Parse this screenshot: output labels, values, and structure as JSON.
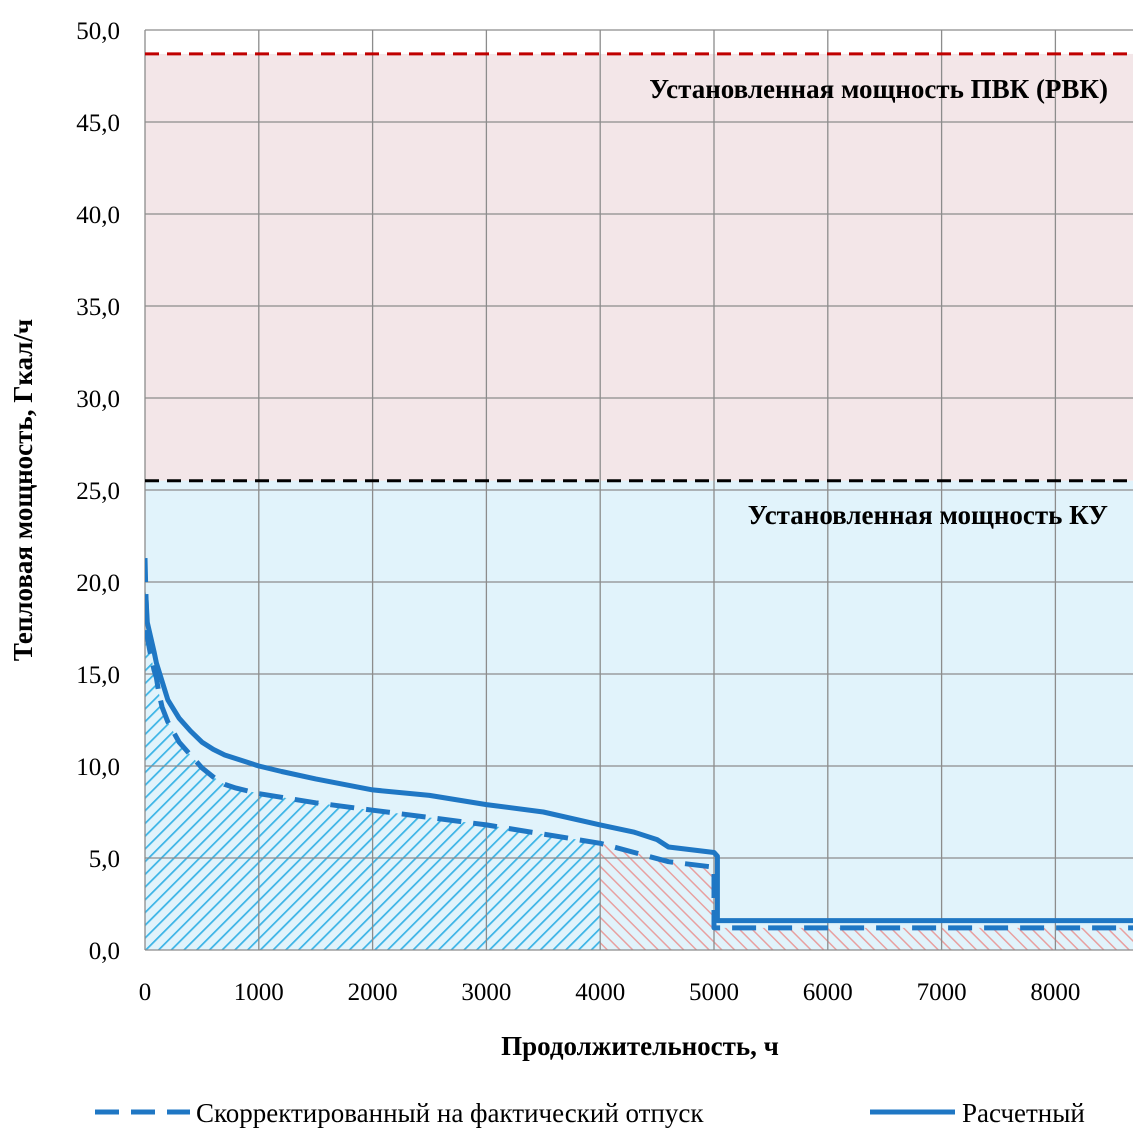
{
  "chart_data": {
    "type": "line",
    "xlabel": "Продолжительность, ч",
    "ylabel": "Тепловая мощность, Гкал/ч",
    "xlim": [
      0,
      8760
    ],
    "ylim": [
      0,
      50
    ],
    "x_ticks": [
      0,
      1000,
      2000,
      3000,
      4000,
      5000,
      6000,
      7000,
      8000
    ],
    "x_tick_labels": [
      "0",
      "1000",
      "2000",
      "3000",
      "4000",
      "5000",
      "6000",
      "7000",
      "8000"
    ],
    "y_ticks": [
      0,
      5,
      10,
      15,
      20,
      25,
      30,
      35,
      40,
      45,
      50
    ],
    "y_tick_labels": [
      "0,0",
      "5,0",
      "10,0",
      "15,0",
      "20,0",
      "25,0",
      "30,0",
      "35,0",
      "40,0",
      "45,0",
      "50,0"
    ],
    "grid": true,
    "legend_position": "bottom",
    "reference_lines": [
      {
        "label": "Установленная мощность ПВК (РВК)",
        "y": 48.7,
        "color": "#c00000"
      },
      {
        "label": "Установленная мощность КУ",
        "y": 25.5,
        "color": "#000000"
      }
    ],
    "bands": [
      {
        "from": 25.5,
        "to": 48.7,
        "color": "#f3e6e8"
      },
      {
        "from": 0,
        "to": 25.5,
        "color": "#e1f3fb"
      }
    ],
    "hatched_regions": [
      {
        "x_from": 0,
        "x_to": 4000,
        "color": "#3cb4e6"
      },
      {
        "x_from": 4000,
        "x_to": 8760,
        "color": "#e8a0a0"
      }
    ],
    "series": [
      {
        "name": "Скорректированный на фактический отпуск",
        "style": "dashed",
        "color": "#1f77c4",
        "x": [
          0,
          5,
          10,
          20,
          50,
          80,
          100,
          120,
          150,
          200,
          300,
          400,
          500,
          600,
          700,
          800,
          1000,
          1200,
          1500,
          2000,
          2500,
          3000,
          3500,
          4000,
          4300,
          4600,
          5000,
          5000,
          5500,
          6000,
          7000,
          8000,
          8760
        ],
        "y": [
          21.3,
          20.0,
          19.0,
          17.0,
          16.0,
          15.2,
          14.8,
          14.0,
          13.2,
          12.4,
          11.3,
          10.6,
          9.9,
          9.4,
          9.0,
          8.8,
          8.5,
          8.3,
          8.0,
          7.6,
          7.2,
          6.8,
          6.3,
          5.8,
          5.3,
          4.8,
          4.5,
          1.2,
          1.2,
          1.2,
          1.2,
          1.2,
          1.2
        ]
      },
      {
        "name": "Расчетный",
        "style": "solid",
        "color": "#1f77c4",
        "x": [
          0,
          10,
          20,
          50,
          80,
          100,
          150,
          200,
          300,
          400,
          500,
          600,
          700,
          800,
          1000,
          1200,
          1500,
          2000,
          2500,
          3000,
          3500,
          4000,
          4300,
          4500,
          4600,
          5000,
          5030,
          5030,
          5500,
          6000,
          7000,
          8000,
          8760
        ],
        "y": [
          19.2,
          19.0,
          17.8,
          17.0,
          16.2,
          15.6,
          14.6,
          13.6,
          12.6,
          11.9,
          11.3,
          10.9,
          10.6,
          10.4,
          10.0,
          9.7,
          9.3,
          8.7,
          8.4,
          7.9,
          7.5,
          6.8,
          6.4,
          6.0,
          5.6,
          5.3,
          5.1,
          1.6,
          1.6,
          1.6,
          1.6,
          1.6,
          1.6
        ]
      }
    ]
  }
}
